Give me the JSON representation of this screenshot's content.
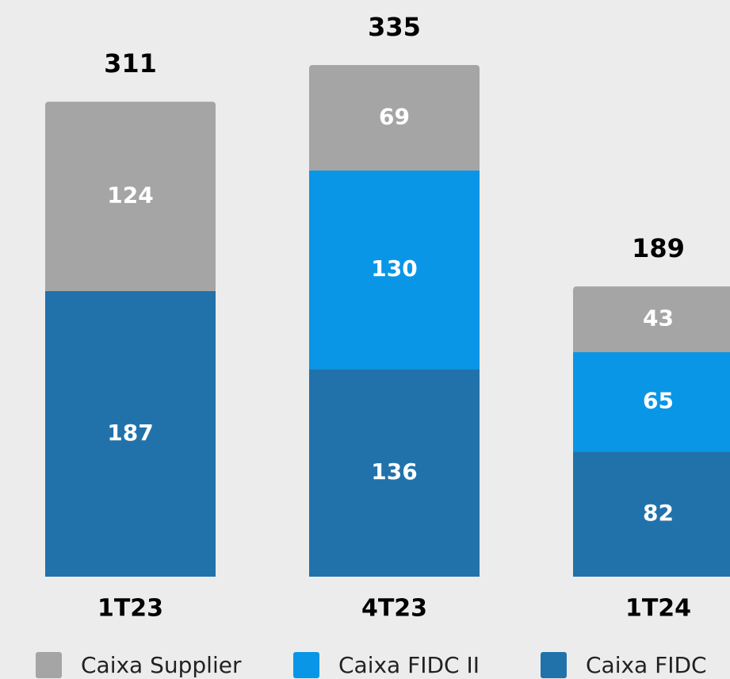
{
  "chart_data": {
    "type": "stacked-bar",
    "categories": [
      "1T23",
      "4T23",
      "1T24"
    ],
    "series": [
      {
        "name": "Caixa Supplier",
        "color": "#a5a5a5",
        "values": [
          124,
          69,
          43
        ]
      },
      {
        "name": "Caixa FIDC II",
        "color": "#0a96e6",
        "values": [
          null,
          130,
          65
        ]
      },
      {
        "name": "Caixa FIDC",
        "color": "#2172ab",
        "values": [
          187,
          136,
          82
        ]
      }
    ],
    "totals": [
      311,
      335,
      189
    ]
  }
}
